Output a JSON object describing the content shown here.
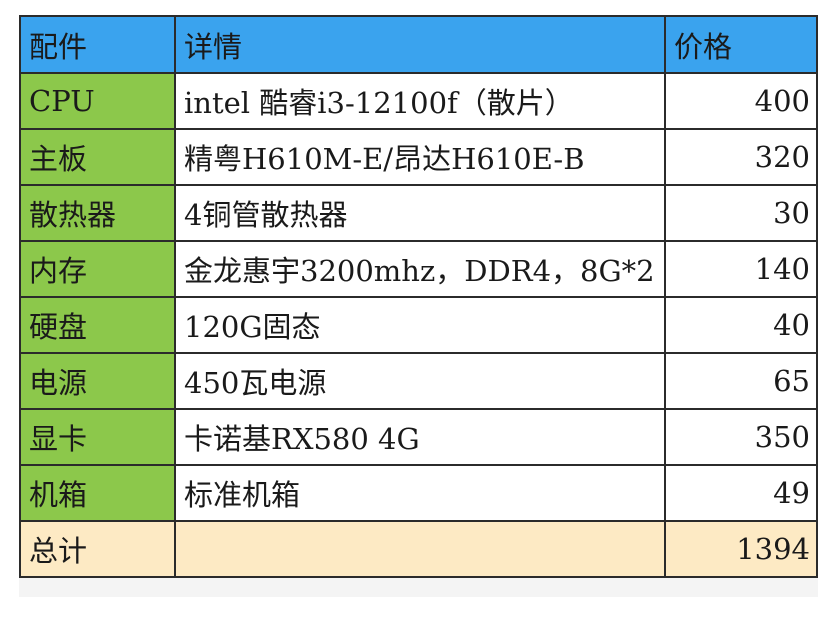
{
  "colors": {
    "header_bg": "#3aa3ee",
    "part_bg": "#8cc84b",
    "total_bg": "#fdeac4",
    "border": "#2b2b2b"
  },
  "header": {
    "part": "配件",
    "detail": "详情",
    "price": "价格"
  },
  "rows": [
    {
      "part": "CPU",
      "detail": "intel 酷睿i3-12100f（散片）",
      "price": "400"
    },
    {
      "part": "主板",
      "detail": "精粤H610M-E/昂达H610E-B",
      "price": "320"
    },
    {
      "part": "散热器",
      "detail": "4铜管散热器",
      "price": "30"
    },
    {
      "part": "内存",
      "detail": "金龙惠宇3200mhz，DDR4，8G*2",
      "price": "140"
    },
    {
      "part": "硬盘",
      "detail": "120G固态",
      "price": "40"
    },
    {
      "part": "电源",
      "detail": "450瓦电源",
      "price": "65"
    },
    {
      "part": "显卡",
      "detail": "卡诺基RX580 4G",
      "price": "350"
    },
    {
      "part": "机箱",
      "detail": "标准机箱",
      "price": "49"
    }
  ],
  "total": {
    "label": "总计",
    "detail": "",
    "price": "1394"
  }
}
